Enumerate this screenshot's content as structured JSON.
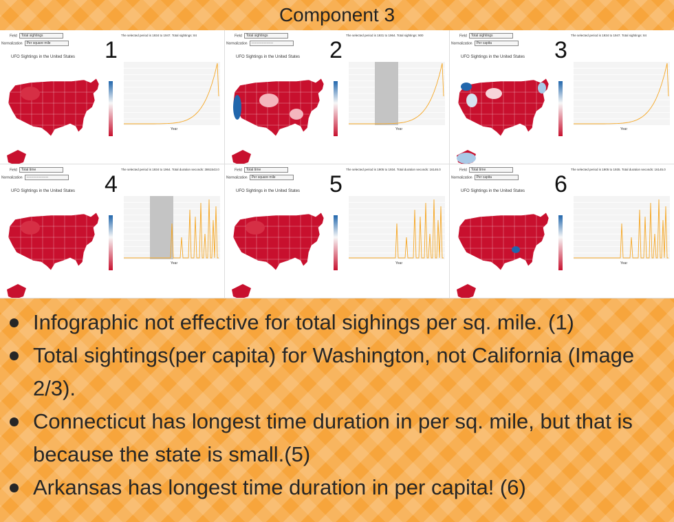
{
  "title": "Component 3",
  "panels": [
    {
      "number": "1",
      "field_label": "Field",
      "field_value": "Total sightings",
      "norm_label": "Normalization",
      "norm_value": "Per square mile",
      "period_text": "The selected period is 1934 to 1947. Total sightings: 84",
      "map_title": "UFO Sightings in the United States",
      "map_palette": "mostly-red",
      "selection": false,
      "chart_type": "smooth",
      "x_label": "Year"
    },
    {
      "number": "2",
      "field_label": "Field",
      "field_value": "Total sightings",
      "norm_label": "Normalization",
      "norm_value": "-------------------",
      "period_text": "The selected period is 1931 to 1964. Total sightings: 900",
      "map_title": "UFO Sightings in the United States",
      "map_palette": "california-blue",
      "selection": true,
      "chart_type": "smooth",
      "x_label": "Year"
    },
    {
      "number": "3",
      "field_label": "Field",
      "field_value": "Total sightings",
      "norm_label": "Normalization",
      "norm_value": "Per capita",
      "period_text": "The selected period is 1934 to 1947. Total sightings: 84",
      "map_title": "UFO Sightings in the United States",
      "map_palette": "washington-blue",
      "selection": false,
      "chart_type": "smooth",
      "x_label": "Year"
    },
    {
      "number": "4",
      "field_label": "Field",
      "field_value": "Total time",
      "norm_label": "Normalization",
      "norm_value": "-------------------",
      "period_text": "The selected period is 1934 to 1964. Total duration seconds: 3861543.0",
      "map_title": "UFO Sightings in the United States",
      "map_palette": "mostly-red",
      "selection": true,
      "chart_type": "spiky",
      "x_label": "Year"
    },
    {
      "number": "5",
      "field_label": "Field",
      "field_value": "Total time",
      "norm_label": "Normalization",
      "norm_value": "Per square mile",
      "period_text": "The selected period is 1905 to 1934. Total duration seconds: 16146.0",
      "map_title": "UFO Sightings in the United States",
      "map_palette": "mostly-red",
      "selection": false,
      "chart_type": "spiky",
      "x_label": "Year"
    },
    {
      "number": "6",
      "field_label": "Field",
      "field_value": "Total time",
      "norm_label": "Normalization",
      "norm_value": "Per capita",
      "period_text": "The selected period is 1905 to 1935. Total duration seconds: 16145.0",
      "map_title": "UFO Sightings in the United States",
      "map_palette": "arkansas-blue",
      "selection": false,
      "chart_type": "spiky",
      "x_label": "Year"
    }
  ],
  "bullets": [
    "Infographic not effective for total sighings per sq. mile. (1)",
    "Total sightings(per capita) for Washington, not California (Image 2/3).",
    "Connecticut has longest time duration in per sq. mile, but that is because the state is small.(5)",
    "Arkansas has longest time duration in per capita! (6)"
  ],
  "colors": {
    "background": "#f7a53c",
    "map_red": "#c8102e",
    "map_blue": "#2166ac",
    "line": "#f5a623"
  }
}
